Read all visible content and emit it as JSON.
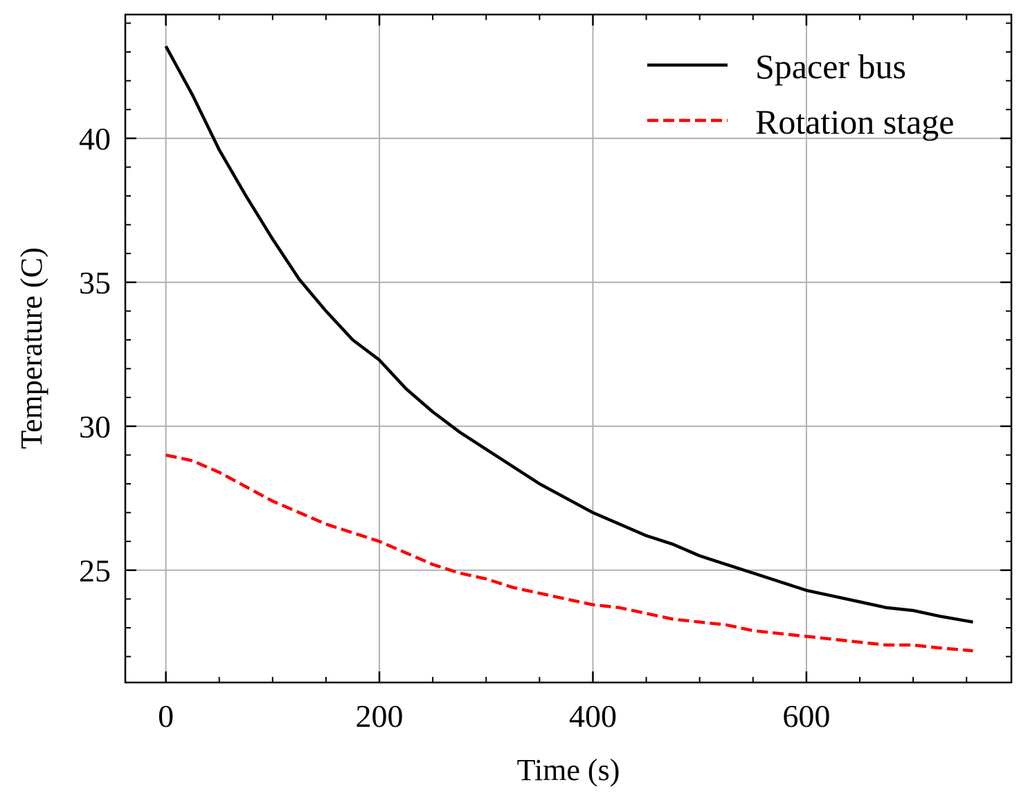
{
  "chart_data": {
    "type": "line",
    "title": "",
    "xlabel": "Time (s)",
    "ylabel": "Temperature (C)",
    "xlim": [
      -38,
      792
    ],
    "ylim": [
      21.1,
      44.3
    ],
    "xticks": [
      0,
      200,
      400,
      600
    ],
    "xtick_labels": [
      "0",
      "200",
      "400",
      "600"
    ],
    "yticks": [
      25,
      30,
      35,
      40
    ],
    "ytick_labels": [
      "25",
      "30",
      "35",
      "40"
    ],
    "x_minor_step": 50,
    "y_minor_step": 1,
    "grid": true,
    "legend_position": "top-right",
    "series": [
      {
        "name": "Spacer bus",
        "color": "#000000",
        "dash": "solid",
        "x": [
          0,
          25,
          50,
          75,
          100,
          125,
          150,
          175,
          200,
          225,
          250,
          275,
          300,
          325,
          350,
          375,
          400,
          425,
          450,
          475,
          500,
          525,
          550,
          575,
          600,
          625,
          650,
          675,
          700,
          725,
          756
        ],
        "y": [
          43.2,
          41.5,
          39.6,
          38.0,
          36.5,
          35.1,
          34.0,
          33.0,
          32.3,
          31.3,
          30.5,
          29.8,
          29.2,
          28.6,
          28.0,
          27.5,
          27.0,
          26.6,
          26.2,
          25.9,
          25.5,
          25.2,
          24.9,
          24.6,
          24.3,
          24.1,
          23.9,
          23.7,
          23.6,
          23.4,
          23.2
        ]
      },
      {
        "name": "Rotation stage",
        "color": "#ff0000",
        "dash": "dashed",
        "x": [
          0,
          25,
          50,
          75,
          100,
          125,
          150,
          175,
          200,
          225,
          250,
          275,
          300,
          325,
          350,
          375,
          400,
          425,
          450,
          475,
          500,
          525,
          550,
          575,
          600,
          625,
          650,
          675,
          700,
          725,
          756
        ],
        "y": [
          29.0,
          28.8,
          28.4,
          27.9,
          27.4,
          27.0,
          26.6,
          26.3,
          26.0,
          25.6,
          25.2,
          24.9,
          24.7,
          24.4,
          24.2,
          24.0,
          23.8,
          23.7,
          23.5,
          23.3,
          23.2,
          23.1,
          22.9,
          22.8,
          22.7,
          22.6,
          22.5,
          22.4,
          22.4,
          22.3,
          22.2
        ]
      }
    ]
  }
}
